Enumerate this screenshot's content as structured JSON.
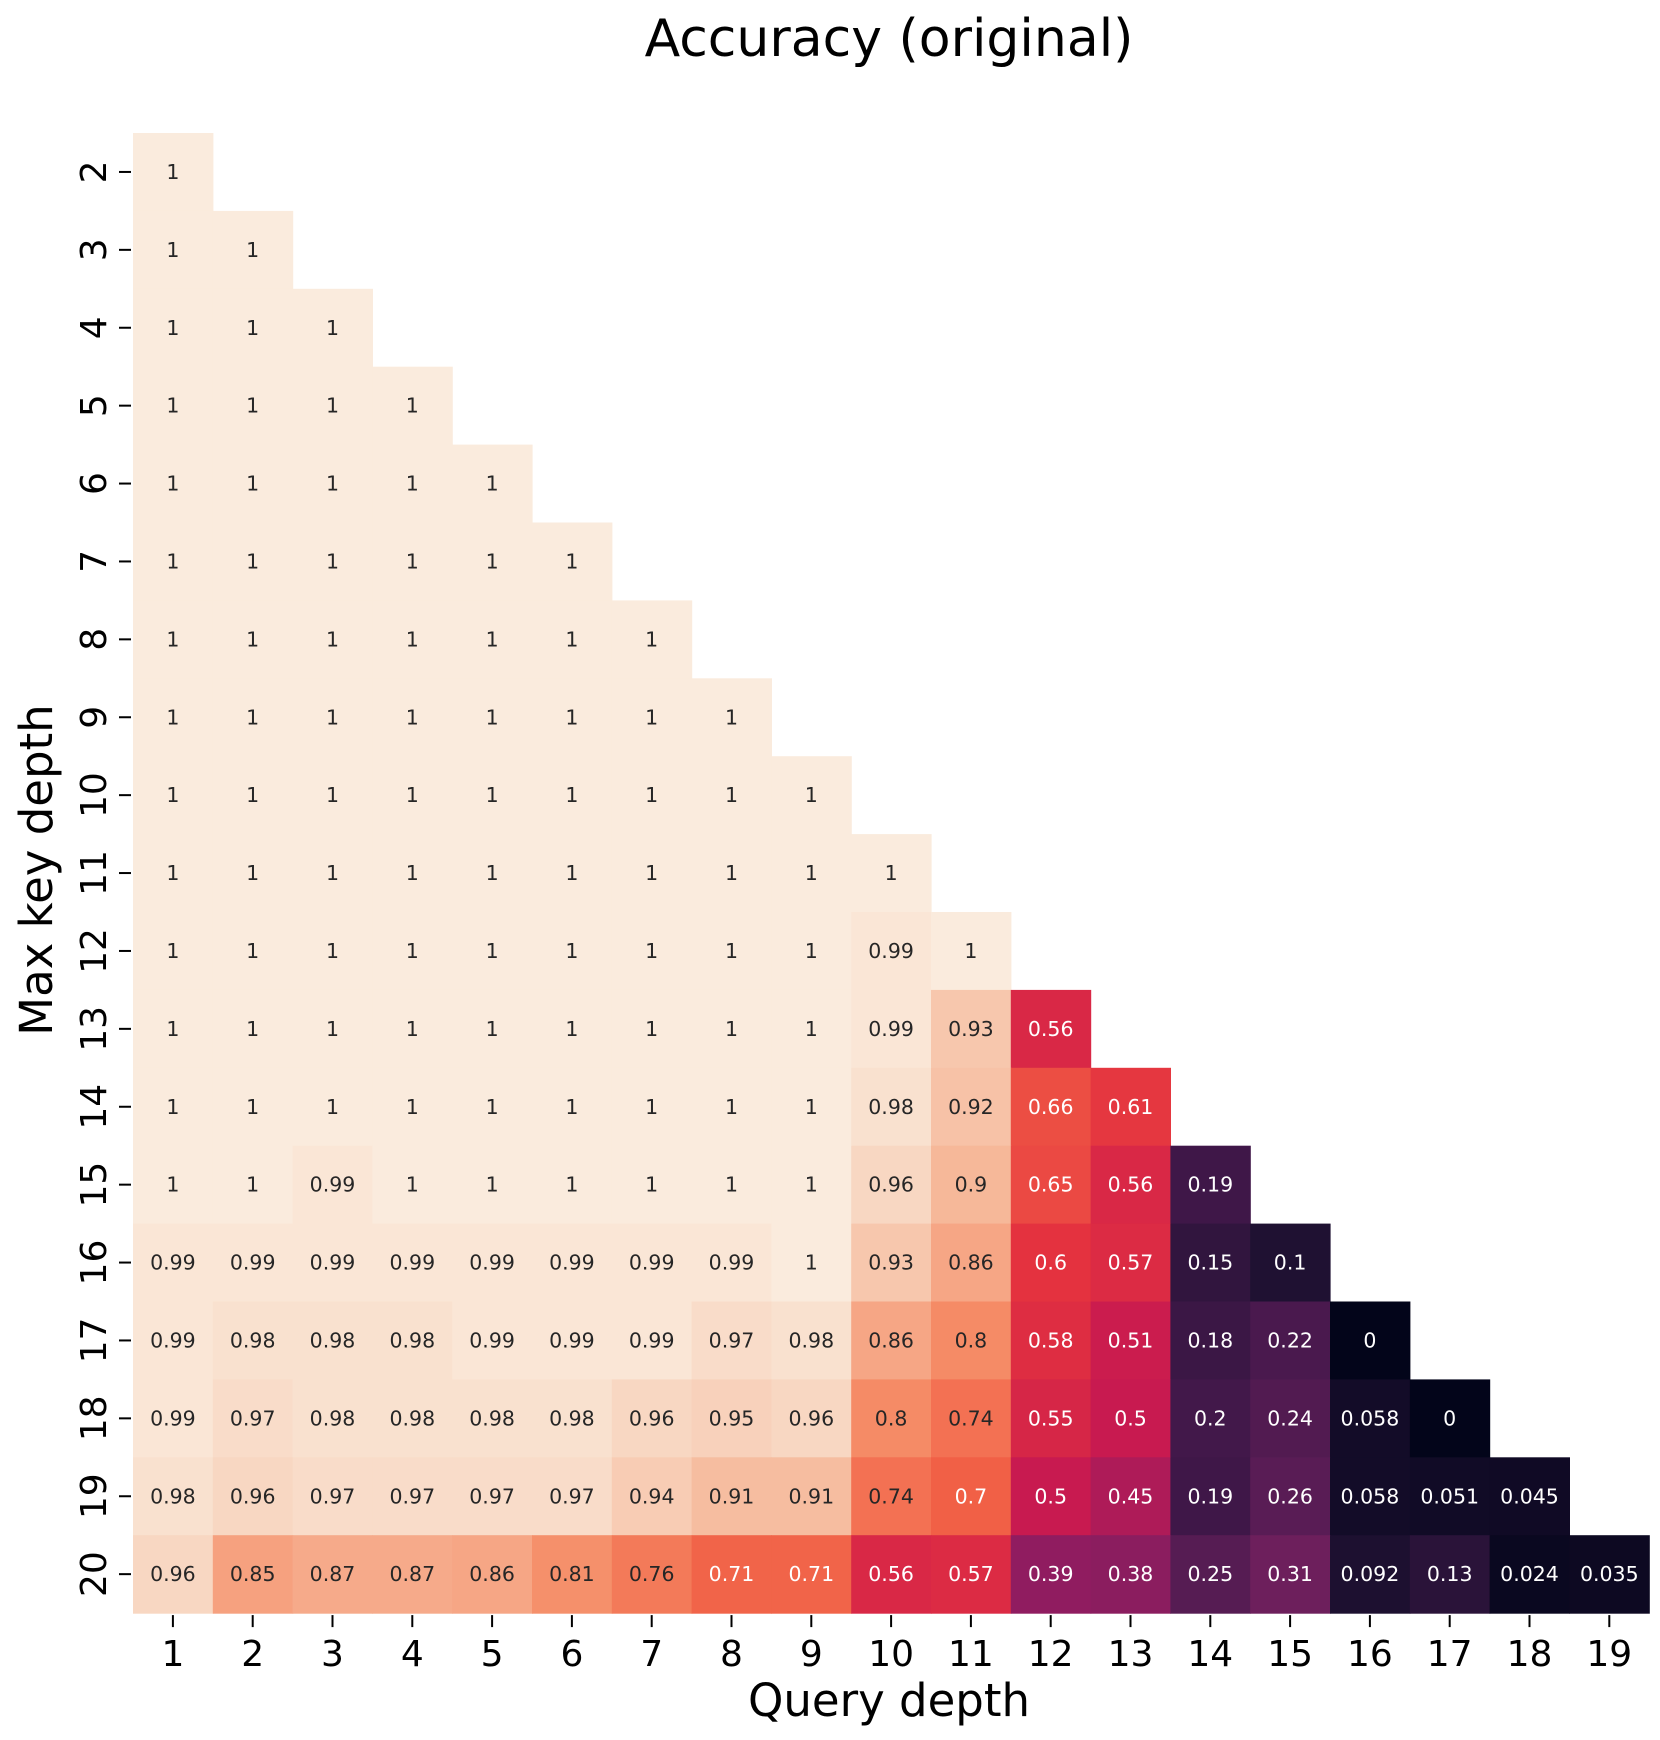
{
  "chart_data": {
    "type": "heatmap",
    "title": "Accuracy (original)",
    "xlabel": "Query depth",
    "ylabel": "Max key depth",
    "x_categories": [
      "1",
      "2",
      "3",
      "4",
      "5",
      "6",
      "7",
      "8",
      "9",
      "10",
      "11",
      "12",
      "13",
      "14",
      "15",
      "16",
      "17",
      "18",
      "19"
    ],
    "y_categories": [
      "2",
      "3",
      "4",
      "5",
      "6",
      "7",
      "8",
      "9",
      "10",
      "11",
      "12",
      "13",
      "14",
      "15",
      "16",
      "17",
      "18",
      "19",
      "20"
    ],
    "value_range": [
      0,
      1
    ],
    "colormap": "rocket",
    "colorbar": false,
    "rows": [
      [
        "1"
      ],
      [
        "1",
        "1"
      ],
      [
        "1",
        "1",
        "1"
      ],
      [
        "1",
        "1",
        "1",
        "1"
      ],
      [
        "1",
        "1",
        "1",
        "1",
        "1"
      ],
      [
        "1",
        "1",
        "1",
        "1",
        "1",
        "1"
      ],
      [
        "1",
        "1",
        "1",
        "1",
        "1",
        "1",
        "1"
      ],
      [
        "1",
        "1",
        "1",
        "1",
        "1",
        "1",
        "1",
        "1"
      ],
      [
        "1",
        "1",
        "1",
        "1",
        "1",
        "1",
        "1",
        "1",
        "1"
      ],
      [
        "1",
        "1",
        "1",
        "1",
        "1",
        "1",
        "1",
        "1",
        "1",
        "1"
      ],
      [
        "1",
        "1",
        "1",
        "1",
        "1",
        "1",
        "1",
        "1",
        "1",
        "0.99",
        "1"
      ],
      [
        "1",
        "1",
        "1",
        "1",
        "1",
        "1",
        "1",
        "1",
        "1",
        "0.99",
        "0.93",
        "0.56"
      ],
      [
        "1",
        "1",
        "1",
        "1",
        "1",
        "1",
        "1",
        "1",
        "1",
        "0.98",
        "0.92",
        "0.66",
        "0.61"
      ],
      [
        "1",
        "1",
        "0.99",
        "1",
        "1",
        "1",
        "1",
        "1",
        "1",
        "0.96",
        "0.9",
        "0.65",
        "0.56",
        "0.19"
      ],
      [
        "0.99",
        "0.99",
        "0.99",
        "0.99",
        "0.99",
        "0.99",
        "0.99",
        "0.99",
        "1",
        "0.93",
        "0.86",
        "0.6",
        "0.57",
        "0.15",
        "0.1"
      ],
      [
        "0.99",
        "0.98",
        "0.98",
        "0.98",
        "0.99",
        "0.99",
        "0.99",
        "0.97",
        "0.98",
        "0.86",
        "0.8",
        "0.58",
        "0.51",
        "0.18",
        "0.22",
        "0"
      ],
      [
        "0.99",
        "0.97",
        "0.98",
        "0.98",
        "0.98",
        "0.98",
        "0.96",
        "0.95",
        "0.96",
        "0.8",
        "0.74",
        "0.55",
        "0.5",
        "0.2",
        "0.24",
        "0.058",
        "0"
      ],
      [
        "0.98",
        "0.96",
        "0.97",
        "0.97",
        "0.97",
        "0.97",
        "0.94",
        "0.91",
        "0.91",
        "0.74",
        "0.7",
        "0.5",
        "0.45",
        "0.19",
        "0.26",
        "0.058",
        "0.051",
        "0.045"
      ],
      [
        "0.96",
        "0.85",
        "0.87",
        "0.87",
        "0.86",
        "0.81",
        "0.76",
        "0.71",
        "0.71",
        "0.56",
        "0.57",
        "0.39",
        "0.38",
        "0.25",
        "0.31",
        "0.092",
        "0.13",
        "0.024",
        "0.035"
      ]
    ]
  }
}
